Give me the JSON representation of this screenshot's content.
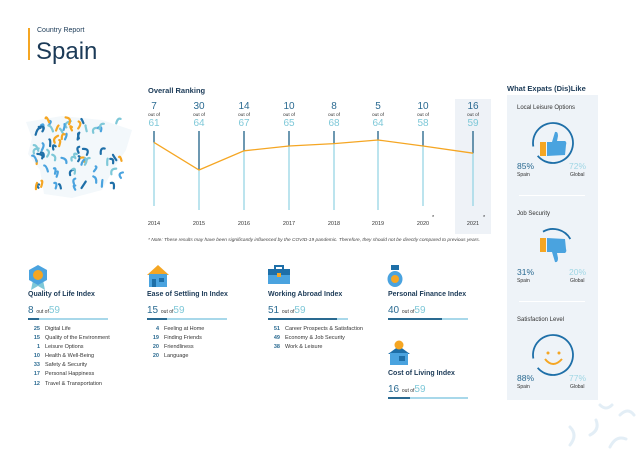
{
  "header": {
    "subtitle": "Country Report",
    "title": "Spain"
  },
  "ranking": {
    "title": "Overall Ranking",
    "out_of_label": "out of",
    "note": "* Note: These results may have been significantly influenced by the COVID-19 pandemic. Therefore, they should not be directly compared to previous years.",
    "columns": [
      {
        "year": "2014",
        "rank": "7",
        "total": "61"
      },
      {
        "year": "2015",
        "rank": "30",
        "total": "64"
      },
      {
        "year": "2016",
        "rank": "14",
        "total": "67"
      },
      {
        "year": "2017",
        "rank": "10",
        "total": "65"
      },
      {
        "year": "2018",
        "rank": "8",
        "total": "68"
      },
      {
        "year": "2019",
        "rank": "5",
        "total": "64"
      },
      {
        "year": "2020",
        "rank": "10",
        "total": "58",
        "asterisk": "*"
      },
      {
        "year": "2021",
        "rank": "16",
        "total": "59",
        "asterisk": "*"
      }
    ]
  },
  "chart_data": {
    "type": "line",
    "title": "Overall Ranking",
    "x": [
      "2014",
      "2015",
      "2016",
      "2017",
      "2018",
      "2019",
      "2020",
      "2021"
    ],
    "values": [
      7,
      30,
      14,
      10,
      8,
      5,
      10,
      16
    ],
    "totals": [
      61,
      64,
      67,
      65,
      68,
      64,
      58,
      59
    ],
    "y_inverted": true
  },
  "indices": [
    {
      "name": "Quality of Life Index",
      "rank": "8",
      "out_of": "out of",
      "total": "59",
      "items": [
        [
          "25",
          "Digital Life"
        ],
        [
          "15",
          "Quality of the Environment"
        ],
        [
          "1",
          "Leisure Options"
        ],
        [
          "10",
          "Health & Well-Being"
        ],
        [
          "33",
          "Safety & Security"
        ],
        [
          "17",
          "Personal Happiness"
        ],
        [
          "12",
          "Travel & Transportation"
        ]
      ]
    },
    {
      "name": "Ease of Settling In Index",
      "rank": "15",
      "out_of": "out of",
      "total": "59",
      "items": [
        [
          "4",
          "Feeling at Home"
        ],
        [
          "19",
          "Finding Friends"
        ],
        [
          "20",
          "Friendliness"
        ],
        [
          "20",
          "Language"
        ]
      ]
    },
    {
      "name": "Working Abroad Index",
      "rank": "51",
      "out_of": "out of",
      "total": "59",
      "items": [
        [
          "51",
          "Career Prospects & Satisfaction"
        ],
        [
          "49",
          "Economy & Job Security"
        ],
        [
          "38",
          "Work & Leisure"
        ]
      ]
    },
    {
      "name": "Personal Finance Index",
      "rank": "40",
      "out_of": "out of",
      "total": "59",
      "items": []
    },
    {
      "name": "Cost of Living Index",
      "rank": "16",
      "out_of": "out of",
      "total": "59",
      "items": []
    }
  ],
  "likes": {
    "title": "What Expats (Dis)Like",
    "cards": [
      {
        "title": "Local Leisure Options",
        "icon": "thumbs-up",
        "spain": "85%",
        "spain_label": "Spain",
        "global": "72%",
        "global_label": "Global"
      },
      {
        "title": "Job Security",
        "icon": "thumbs-down",
        "spain": "31%",
        "spain_label": "Spain",
        "global": "20%",
        "global_label": "Global"
      },
      {
        "title": "Satisfaction Level",
        "icon": "smiley",
        "spain": "88%",
        "spain_label": "Spain",
        "global": "77%",
        "global_label": "Global"
      }
    ]
  },
  "colors": {
    "primary": "#2a6a91",
    "light": "#7ec8d8",
    "orange": "#f5a623",
    "navy": "#1b3a57"
  }
}
